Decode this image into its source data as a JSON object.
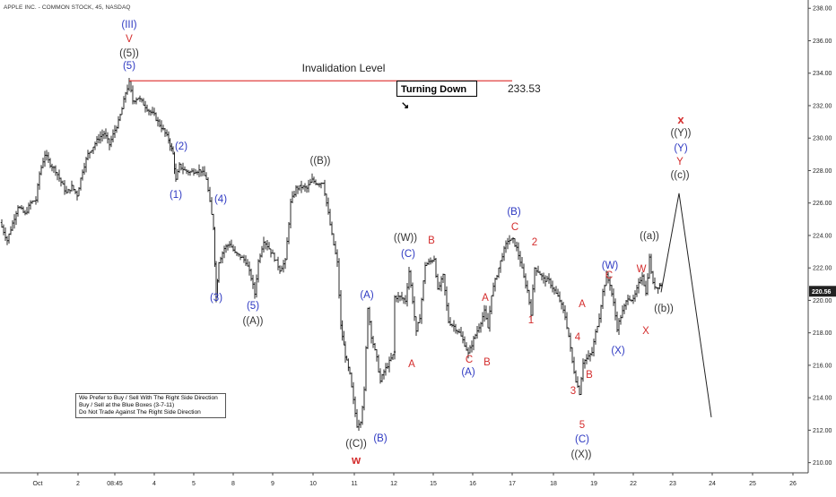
{
  "header": {
    "symbol_line": "APPLE INC. - COMMON STOCK, 45, NASDAQ"
  },
  "chart_data": {
    "type": "candlestick",
    "title": "APPLE INC. - COMMON STOCK, 45, NASDAQ",
    "ylim": [
      209.4,
      238.4
    ],
    "y_ticks": [
      210,
      212,
      214,
      216,
      218,
      220,
      222,
      224,
      226,
      228,
      230,
      232,
      234,
      236,
      238
    ],
    "y_tick_labels": [
      "210.00",
      "212.00",
      "214.00",
      "216.00",
      "218.00",
      "220.00",
      "222.00",
      "224.00",
      "226.00",
      "228.00",
      "230.00",
      "232.00",
      "234.00",
      "236.00",
      "238.00"
    ],
    "x_ticks": [
      "Oct",
      "2",
      "08:45",
      "4",
      "5",
      "8",
      "9",
      "10",
      "11",
      "12",
      "15",
      "16",
      "17",
      "18",
      "19",
      "22",
      "23",
      "24",
      "25",
      "26"
    ],
    "current_price_label": "220.56",
    "current_price": 220.56,
    "invalidation": {
      "label": "Invalidation Level",
      "price_label": "233.53",
      "price": 233.53,
      "box_text": "Turning Down ↘"
    },
    "price_path": [
      [
        0,
        224.8
      ],
      [
        8,
        223.7
      ],
      [
        20,
        225.8
      ],
      [
        28,
        225.3
      ],
      [
        34,
        226.0
      ],
      [
        40,
        226.2
      ],
      [
        44,
        227.8
      ],
      [
        50,
        229.0
      ],
      [
        56,
        228.4
      ],
      [
        62,
        228.0
      ],
      [
        68,
        227.3
      ],
      [
        74,
        226.6
      ],
      [
        80,
        227.0
      ],
      [
        86,
        226.5
      ],
      [
        92,
        228.0
      ],
      [
        98,
        229.0
      ],
      [
        104,
        229.5
      ],
      [
        110,
        230.0
      ],
      [
        116,
        230.3
      ],
      [
        122,
        229.6
      ],
      [
        128,
        230.5
      ],
      [
        132,
        231.0
      ],
      [
        136,
        231.8
      ],
      [
        140,
        232.8
      ],
      [
        144,
        233.4
      ],
      [
        148,
        232.3
      ],
      [
        154,
        232.5
      ],
      [
        160,
        232.1
      ],
      [
        166,
        231.7
      ],
      [
        172,
        231.4
      ],
      [
        176,
        231.0
      ],
      [
        182,
        230.5
      ],
      [
        188,
        229.9
      ],
      [
        193,
        229.0
      ],
      [
        196,
        227.4
      ],
      [
        200,
        228.3
      ],
      [
        206,
        228.0
      ],
      [
        212,
        227.9
      ],
      [
        218,
        228.0
      ],
      [
        224,
        228.0
      ],
      [
        230,
        227.5
      ],
      [
        234,
        226.0
      ],
      [
        238,
        224.5
      ],
      [
        241,
        220.2
      ],
      [
        244,
        222.4
      ],
      [
        250,
        223.2
      ],
      [
        256,
        223.5
      ],
      [
        262,
        222.9
      ],
      [
        268,
        222.7
      ],
      [
        274,
        222.4
      ],
      [
        280,
        221.4
      ],
      [
        284,
        220.4
      ],
      [
        288,
        222.4
      ],
      [
        294,
        223.7
      ],
      [
        300,
        223.2
      ],
      [
        306,
        222.6
      ],
      [
        312,
        221.9
      ],
      [
        318,
        222.4
      ],
      [
        324,
        226.0
      ],
      [
        330,
        226.9
      ],
      [
        336,
        227.0
      ],
      [
        342,
        226.9
      ],
      [
        348,
        227.4
      ],
      [
        354,
        227.2
      ],
      [
        360,
        227.3
      ],
      [
        364,
        226.0
      ],
      [
        370,
        224.0
      ],
      [
        376,
        222.3
      ],
      [
        380,
        218.4
      ],
      [
        385,
        216.6
      ],
      [
        390,
        215.4
      ],
      [
        394,
        213.8
      ],
      [
        398,
        212.3
      ],
      [
        402,
        212.6
      ],
      [
        406,
        214.4
      ],
      [
        410,
        219.6
      ],
      [
        414,
        217.8
      ],
      [
        420,
        216.4
      ],
      [
        424,
        215.0
      ],
      [
        428,
        215.6
      ],
      [
        434,
        216.2
      ],
      [
        440,
        216.8
      ],
      [
        440,
        220.2
      ],
      [
        446,
        220.2
      ],
      [
        452,
        220.0
      ],
      [
        456,
        221.8
      ],
      [
        460,
        220.0
      ],
      [
        464,
        218.0
      ],
      [
        468,
        219.0
      ],
      [
        474,
        222.2
      ],
      [
        480,
        222.4
      ],
      [
        484,
        222.6
      ],
      [
        488,
        220.6
      ],
      [
        494,
        221.5
      ],
      [
        500,
        218.7
      ],
      [
        506,
        218.4
      ],
      [
        512,
        218.0
      ],
      [
        518,
        217.3
      ],
      [
        522,
        216.7
      ],
      [
        528,
        217.6
      ],
      [
        534,
        218.4
      ],
      [
        540,
        219.3
      ],
      [
        544,
        218.3
      ],
      [
        548,
        220.4
      ],
      [
        554,
        221.6
      ],
      [
        560,
        222.8
      ],
      [
        566,
        223.7
      ],
      [
        572,
        223.7
      ],
      [
        576,
        223.2
      ],
      [
        580,
        222.4
      ],
      [
        584,
        221.4
      ],
      [
        588,
        220.6
      ],
      [
        592,
        219.2
      ],
      [
        596,
        222.0
      ],
      [
        600,
        221.8
      ],
      [
        606,
        221.3
      ],
      [
        612,
        221.2
      ],
      [
        618,
        220.6
      ],
      [
        624,
        220.0
      ],
      [
        630,
        219.0
      ],
      [
        634,
        217.8
      ],
      [
        638,
        216.2
      ],
      [
        642,
        215.1
      ],
      [
        646,
        214.3
      ],
      [
        650,
        216.2
      ],
      [
        656,
        216.5
      ],
      [
        660,
        216.8
      ],
      [
        664,
        218.0
      ],
      [
        668,
        219.0
      ],
      [
        672,
        220.5
      ],
      [
        676,
        221.5
      ],
      [
        680,
        221.0
      ],
      [
        684,
        219.8
      ],
      [
        688,
        218.3
      ],
      [
        692,
        219.0
      ],
      [
        696,
        219.6
      ],
      [
        700,
        220.2
      ],
      [
        706,
        220.0
      ],
      [
        712,
        221.0
      ],
      [
        716,
        221.6
      ],
      [
        720,
        220.4
      ],
      [
        724,
        222.6
      ],
      [
        728,
        221.0
      ],
      [
        732,
        220.8
      ],
      [
        737,
        221.0
      ]
    ],
    "projection": [
      [
        737,
        220.5
      ],
      [
        757,
        226.6
      ],
      [
        793,
        212.8
      ]
    ],
    "wave_labels": [
      {
        "t": "(III)",
        "x": 144,
        "y": 31,
        "c": "#2e39c2"
      },
      {
        "t": "V",
        "x": 144,
        "y": 47,
        "c": "#d42d2d"
      },
      {
        "t": "((5))",
        "x": 144,
        "y": 63,
        "c": "#333333"
      },
      {
        "t": "(5)",
        "x": 144,
        "y": 77,
        "c": "#2e39c2"
      },
      {
        "t": "(2)",
        "x": 202,
        "y": 167,
        "c": "#2e39c2"
      },
      {
        "t": "(1)",
        "x": 196,
        "y": 221,
        "c": "#2e39c2"
      },
      {
        "t": "(4)",
        "x": 246,
        "y": 226,
        "c": "#2e39c2"
      },
      {
        "t": "(3)",
        "x": 241,
        "y": 336,
        "c": "#2e39c2"
      },
      {
        "t": "(5)",
        "x": 282,
        "y": 345,
        "c": "#2e39c2"
      },
      {
        "t": "((A))",
        "x": 282,
        "y": 362,
        "c": "#333333"
      },
      {
        "t": "((B))",
        "x": 357,
        "y": 183,
        "c": "#333333"
      },
      {
        "t": "(A)",
        "x": 409,
        "y": 333,
        "c": "#2e39c2"
      },
      {
        "t": "(B)",
        "x": 424,
        "y": 493,
        "c": "#2e39c2"
      },
      {
        "t": "((C))",
        "x": 397,
        "y": 499,
        "c": "#333333"
      },
      {
        "t": "w",
        "x": 397,
        "y": 518,
        "c": "#d42d2d",
        "b": true
      },
      {
        "t": "((W))",
        "x": 452,
        "y": 269,
        "c": "#333333"
      },
      {
        "t": "(C)",
        "x": 455,
        "y": 287,
        "c": "#2e39c2"
      },
      {
        "t": "B",
        "x": 481,
        "y": 272,
        "c": "#d42d2d"
      },
      {
        "t": "A",
        "x": 459,
        "y": 410,
        "c": "#d42d2d"
      },
      {
        "t": "C",
        "x": 523,
        "y": 405,
        "c": "#d42d2d"
      },
      {
        "t": "(A)",
        "x": 522,
        "y": 419,
        "c": "#2e39c2"
      },
      {
        "t": "A",
        "x": 541,
        "y": 336,
        "c": "#d42d2d"
      },
      {
        "t": "B",
        "x": 543,
        "y": 408,
        "c": "#d42d2d"
      },
      {
        "t": "(B)",
        "x": 573,
        "y": 240,
        "c": "#2e39c2"
      },
      {
        "t": "C",
        "x": 574,
        "y": 257,
        "c": "#d42d2d"
      },
      {
        "t": "2",
        "x": 596,
        "y": 274,
        "c": "#d42d2d"
      },
      {
        "t": "1",
        "x": 592,
        "y": 361,
        "c": "#d42d2d"
      },
      {
        "t": "A",
        "x": 649,
        "y": 343,
        "c": "#d42d2d"
      },
      {
        "t": "4",
        "x": 644,
        "y": 380,
        "c": "#d42d2d"
      },
      {
        "t": "3",
        "x": 639,
        "y": 440,
        "c": "#d42d2d"
      },
      {
        "t": "B",
        "x": 657,
        "y": 422,
        "c": "#d42d2d"
      },
      {
        "t": "5",
        "x": 649,
        "y": 478,
        "c": "#d42d2d"
      },
      {
        "t": "(C)",
        "x": 649,
        "y": 494,
        "c": "#2e39c2"
      },
      {
        "t": "((X))",
        "x": 648,
        "y": 511,
        "c": "#333333"
      },
      {
        "t": "(W)",
        "x": 680,
        "y": 300,
        "c": "#2e39c2"
      },
      {
        "t": "C",
        "x": 679,
        "y": 311,
        "c": "#d42d2d"
      },
      {
        "t": "(X)",
        "x": 689,
        "y": 395,
        "c": "#2e39c2"
      },
      {
        "t": "W",
        "x": 715,
        "y": 304,
        "c": "#d42d2d"
      },
      {
        "t": "((a))",
        "x": 724,
        "y": 267,
        "c": "#333333"
      },
      {
        "t": "X",
        "x": 720,
        "y": 373,
        "c": "#d42d2d"
      },
      {
        "t": "((b))",
        "x": 740,
        "y": 348,
        "c": "#333333"
      },
      {
        "t": "x",
        "x": 759,
        "y": 138,
        "c": "#d42d2d",
        "b": true
      },
      {
        "t": "((Y))",
        "x": 759,
        "y": 152,
        "c": "#333333"
      },
      {
        "t": "(Y)",
        "x": 759,
        "y": 169,
        "c": "#2e39c2"
      },
      {
        "t": "Y",
        "x": 758,
        "y": 184,
        "c": "#d42d2d"
      },
      {
        "t": "((c))",
        "x": 758,
        "y": 199,
        "c": "#333333"
      }
    ]
  },
  "notes": {
    "line1": "We Prefer to Buy / Sell With The Right Side Direction",
    "line2": "Buy / Sell at the Blue Boxes (3-7-11)",
    "line3": "Do Not Trade Against The Right Side Direction"
  }
}
